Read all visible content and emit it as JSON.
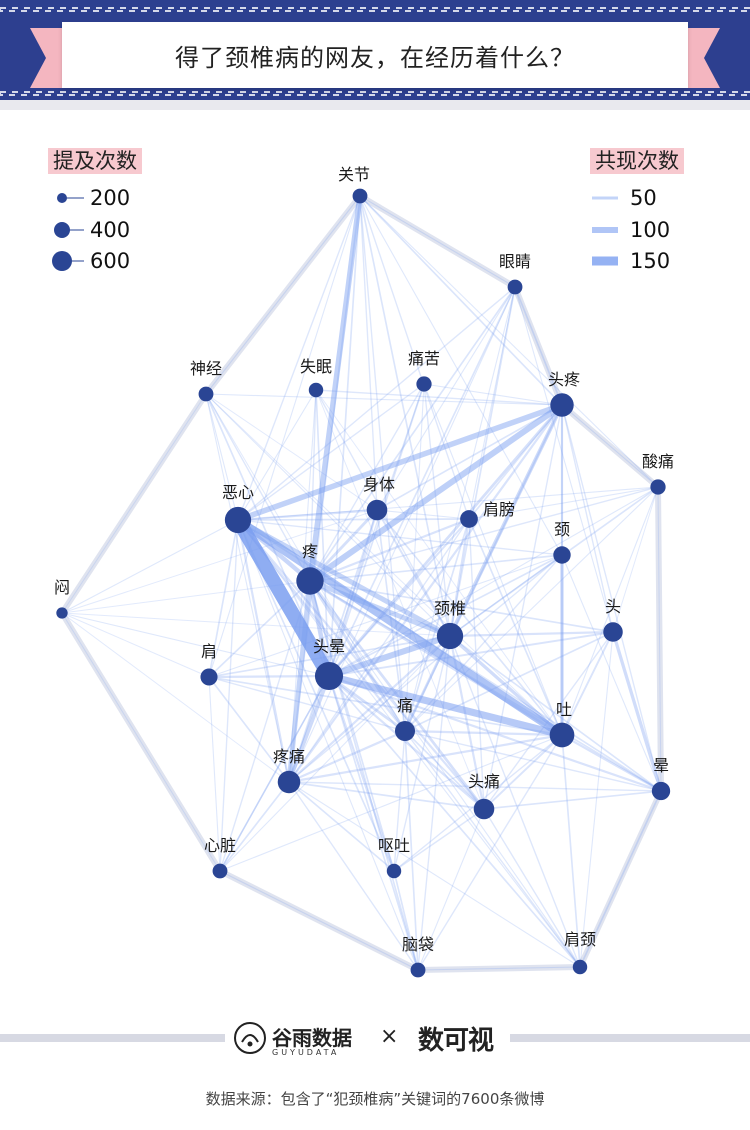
{
  "title": "得了颈椎病的网友，在经历着什么？",
  "legend_size": {
    "title": "提及次数",
    "items": [
      {
        "label": "200",
        "value": 200
      },
      {
        "label": "400",
        "value": 400
      },
      {
        "label": "600",
        "value": 600
      }
    ]
  },
  "legend_cooccur": {
    "title": "共现次数",
    "items": [
      {
        "label": "50",
        "value": 50
      },
      {
        "label": "100",
        "value": 100
      },
      {
        "label": "150",
        "value": 150
      }
    ]
  },
  "footer": {
    "brand1": "谷雨数据",
    "brand1_sub": "GUYUDATA",
    "times": "×",
    "brand2": "数可视",
    "source": "数据来源：包含了“犯颈椎病”关键词的7600条微博"
  },
  "colors": {
    "banner": "#2d3f8f",
    "accent_pink": "#f4b6c0",
    "node": "#2a4594",
    "edge": "#7b9ff0"
  },
  "chart_data": {
    "type": "network",
    "size_legend_title": "提及次数",
    "edge_legend_title": "共现次数",
    "nodes": [
      {
        "id": "关节",
        "mentions": 120
      },
      {
        "id": "眼睛",
        "mentions": 120
      },
      {
        "id": "神经",
        "mentions": 120
      },
      {
        "id": "失眠",
        "mentions": 110
      },
      {
        "id": "痛苦",
        "mentions": 130
      },
      {
        "id": "头疼",
        "mentions": 420
      },
      {
        "id": "酸痛",
        "mentions": 130
      },
      {
        "id": "恶心",
        "mentions": 560
      },
      {
        "id": "身体",
        "mentions": 300
      },
      {
        "id": "肩膀",
        "mentions": 200
      },
      {
        "id": "颈",
        "mentions": 190
      },
      {
        "id": "疼",
        "mentions": 620
      },
      {
        "id": "闷",
        "mentions": 50
      },
      {
        "id": "颈椎",
        "mentions": 560
      },
      {
        "id": "头",
        "mentions": 260
      },
      {
        "id": "肩",
        "mentions": 180
      },
      {
        "id": "头晕",
        "mentions": 660
      },
      {
        "id": "痛",
        "mentions": 280
      },
      {
        "id": "吐",
        "mentions": 480
      },
      {
        "id": "疼痛",
        "mentions": 380
      },
      {
        "id": "头痛",
        "mentions": 300
      },
      {
        "id": "晕",
        "mentions": 220
      },
      {
        "id": "心脏",
        "mentions": 120
      },
      {
        "id": "呕吐",
        "mentions": 110
      },
      {
        "id": "脑袋",
        "mentions": 120
      },
      {
        "id": "肩颈",
        "mentions": 110
      }
    ],
    "edges": [
      {
        "source": "恶心",
        "target": "头晕",
        "cooccur": 260
      },
      {
        "source": "恶心",
        "target": "吐",
        "cooccur": 150
      },
      {
        "source": "头晕",
        "target": "吐",
        "cooccur": 130
      },
      {
        "source": "疼",
        "target": "头疼",
        "cooccur": 110
      },
      {
        "source": "恶心",
        "target": "头疼",
        "cooccur": 100
      },
      {
        "source": "头晕",
        "target": "颈椎",
        "cooccur": 110
      },
      {
        "source": "关节",
        "target": "疼",
        "cooccur": 100
      },
      {
        "source": "疼",
        "target": "颈椎",
        "cooccur": 90
      },
      {
        "source": "恶心",
        "target": "颈椎",
        "cooccur": 90
      },
      {
        "source": "恶心",
        "target": "疼",
        "cooccur": 80
      },
      {
        "source": "疼",
        "target": "疼痛",
        "cooccur": 90
      },
      {
        "source": "头晕",
        "target": "疼痛",
        "cooccur": 70
      },
      {
        "source": "疼",
        "target": "头晕",
        "cooccur": 80
      },
      {
        "source": "颈椎",
        "target": "头疼",
        "cooccur": 70
      },
      {
        "source": "颈",
        "target": "吐",
        "cooccur": 60
      },
      {
        "source": "头",
        "target": "晕",
        "cooccur": 60
      },
      {
        "source": "身体",
        "target": "疼",
        "cooccur": 50
      },
      {
        "source": "颈椎",
        "target": "吐",
        "cooccur": 60
      },
      {
        "source": "头疼",
        "target": "头晕",
        "cooccur": 50
      },
      {
        "source": "疼",
        "target": "头痛",
        "cooccur": 50
      },
      {
        "source": "头晕",
        "target": "痛",
        "cooccur": 50
      },
      {
        "source": "肩膀",
        "target": "颈椎",
        "cooccur": 40
      },
      {
        "source": "头疼",
        "target": "吐",
        "cooccur": 40
      },
      {
        "source": "头晕",
        "target": "呕吐",
        "cooccur": 40
      },
      {
        "source": "恶心",
        "target": "身体",
        "cooccur": 40
      },
      {
        "source": "头疼",
        "target": "疼痛",
        "cooccur": 40
      },
      {
        "source": "头晕",
        "target": "头痛",
        "cooccur": 40
      },
      {
        "source": "痛苦",
        "target": "头晕",
        "cooccur": 30
      },
      {
        "source": "眼睛",
        "target": "疼",
        "cooccur": 30
      },
      {
        "source": "神经",
        "target": "头晕",
        "cooccur": 30
      },
      {
        "source": "酸痛",
        "target": "颈椎",
        "cooccur": 30
      },
      {
        "source": "失眠",
        "target": "头晕",
        "cooccur": 30
      },
      {
        "source": "恶心",
        "target": "疼痛",
        "cooccur": 40
      },
      {
        "source": "疼",
        "target": "肩",
        "cooccur": 30
      },
      {
        "source": "心脏",
        "target": "头晕",
        "cooccur": 25
      },
      {
        "source": "脑袋",
        "target": "头晕",
        "cooccur": 30
      },
      {
        "source": "肩颈",
        "target": "痛",
        "cooccur": 25
      },
      {
        "source": "闷",
        "target": "头晕",
        "cooccur": 20
      },
      {
        "source": "闷",
        "target": "恶心",
        "cooccur": 20
      },
      {
        "source": "闷",
        "target": "疼",
        "cooccur": 15
      },
      {
        "source": "闷",
        "target": "身体",
        "cooccur": 15
      },
      {
        "source": "闷",
        "target": "肩",
        "cooccur": 15
      },
      {
        "source": "闷",
        "target": "心脏",
        "cooccur": 10
      },
      {
        "source": "闷",
        "target": "神经",
        "cooccur": 10
      },
      {
        "source": "闷",
        "target": "颈椎",
        "cooccur": 15
      },
      {
        "source": "闷",
        "target": "疼痛",
        "cooccur": 15
      },
      {
        "source": "关节",
        "target": "神经",
        "cooccur": 20
      },
      {
        "source": "关节",
        "target": "眼睛",
        "cooccur": 20
      },
      {
        "source": "关节",
        "target": "头疼",
        "cooccur": 30
      },
      {
        "source": "关节",
        "target": "恶心",
        "cooccur": 25
      },
      {
        "source": "关节",
        "target": "头晕",
        "cooccur": 30
      },
      {
        "source": "关节",
        "target": "颈椎",
        "cooccur": 30
      },
      {
        "source": "关节",
        "target": "身体",
        "cooccur": 25
      },
      {
        "source": "关节",
        "target": "肩膀",
        "cooccur": 25
      },
      {
        "source": "关节",
        "target": "疼痛",
        "cooccur": 30
      },
      {
        "source": "关节",
        "target": "痛",
        "cooccur": 25
      },
      {
        "source": "关节",
        "target": "酸痛",
        "cooccur": 20
      },
      {
        "source": "关节",
        "target": "颈",
        "cooccur": 20
      },
      {
        "source": "关节",
        "target": "肩",
        "cooccur": 20
      },
      {
        "source": "眼睛",
        "target": "头疼",
        "cooccur": 30
      },
      {
        "source": "眼睛",
        "target": "恶心",
        "cooccur": 25
      },
      {
        "source": "眼睛",
        "target": "头晕",
        "cooccur": 30
      },
      {
        "source": "眼睛",
        "target": "颈椎",
        "cooccur": 30
      },
      {
        "source": "眼睛",
        "target": "身体",
        "cooccur": 20
      },
      {
        "source": "眼睛",
        "target": "痛",
        "cooccur": 20
      },
      {
        "source": "眼睛",
        "target": "疼痛",
        "cooccur": 20
      },
      {
        "source": "眼睛",
        "target": "头",
        "cooccur": 20
      },
      {
        "source": "眼睛",
        "target": "肩膀",
        "cooccur": 20
      },
      {
        "source": "神经",
        "target": "恶心",
        "cooccur": 20
      },
      {
        "source": "神经",
        "target": "疼",
        "cooccur": 25
      },
      {
        "source": "神经",
        "target": "颈椎",
        "cooccur": 20
      },
      {
        "source": "神经",
        "target": "头疼",
        "cooccur": 20
      },
      {
        "source": "神经",
        "target": "疼痛",
        "cooccur": 20
      },
      {
        "source": "神经",
        "target": "身体",
        "cooccur": 15
      },
      {
        "source": "神经",
        "target": "痛",
        "cooccur": 15
      },
      {
        "source": "神经",
        "target": "吐",
        "cooccur": 15
      },
      {
        "source": "失眠",
        "target": "恶心",
        "cooccur": 20
      },
      {
        "source": "失眠",
        "target": "疼",
        "cooccur": 25
      },
      {
        "source": "失眠",
        "target": "头疼",
        "cooccur": 25
      },
      {
        "source": "失眠",
        "target": "颈椎",
        "cooccur": 25
      },
      {
        "source": "失眠",
        "target": "疼痛",
        "cooccur": 20
      },
      {
        "source": "失眠",
        "target": "吐",
        "cooccur": 15
      },
      {
        "source": "失眠",
        "target": "头痛",
        "cooccur": 15
      },
      {
        "source": "痛苦",
        "target": "恶心",
        "cooccur": 25
      },
      {
        "source": "痛苦",
        "target": "疼",
        "cooccur": 25
      },
      {
        "source": "痛苦",
        "target": "颈椎",
        "cooccur": 25
      },
      {
        "source": "痛苦",
        "target": "吐",
        "cooccur": 20
      },
      {
        "source": "痛苦",
        "target": "头疼",
        "cooccur": 20
      },
      {
        "source": "痛苦",
        "target": "疼痛",
        "cooccur": 25
      },
      {
        "source": "痛苦",
        "target": "痛",
        "cooccur": 20
      },
      {
        "source": "头疼",
        "target": "头",
        "cooccur": 25
      },
      {
        "source": "头疼",
        "target": "颈",
        "cooccur": 30
      },
      {
        "source": "头疼",
        "target": "肩膀",
        "cooccur": 30
      },
      {
        "source": "头疼",
        "target": "身体",
        "cooccur": 30
      },
      {
        "source": "头疼",
        "target": "痛",
        "cooccur": 30
      },
      {
        "source": "头疼",
        "target": "头痛",
        "cooccur": 25
      },
      {
        "source": "头疼",
        "target": "晕",
        "cooccur": 25
      },
      {
        "source": "头疼",
        "target": "酸痛",
        "cooccur": 20
      },
      {
        "source": "酸痛",
        "target": "疼",
        "cooccur": 25
      },
      {
        "source": "酸痛",
        "target": "头晕",
        "cooccur": 20
      },
      {
        "source": "酸痛",
        "target": "痛",
        "cooccur": 20
      },
      {
        "source": "酸痛",
        "target": "肩膀",
        "cooccur": 20
      },
      {
        "source": "酸痛",
        "target": "吐",
        "cooccur": 20
      },
      {
        "source": "酸痛",
        "target": "头",
        "cooccur": 15
      },
      {
        "source": "酸痛",
        "target": "晕",
        "cooccur": 15
      },
      {
        "source": "酸痛",
        "target": "恶心",
        "cooccur": 20
      },
      {
        "source": "恶心",
        "target": "肩膀",
        "cooccur": 30
      },
      {
        "source": "恶心",
        "target": "痛",
        "cooccur": 40
      },
      {
        "source": "恶心",
        "target": "头痛",
        "cooccur": 40
      },
      {
        "source": "恶心",
        "target": "肩",
        "cooccur": 30
      },
      {
        "source": "恶心",
        "target": "呕吐",
        "cooccur": 30
      },
      {
        "source": "恶心",
        "target": "晕",
        "cooccur": 30
      },
      {
        "source": "恶心",
        "target": "颈",
        "cooccur": 25
      },
      {
        "source": "恶心",
        "target": "心脏",
        "cooccur": 25
      },
      {
        "source": "身体",
        "target": "颈椎",
        "cooccur": 35
      },
      {
        "source": "身体",
        "target": "头晕",
        "cooccur": 40
      },
      {
        "source": "身体",
        "target": "吐",
        "cooccur": 30
      },
      {
        "source": "身体",
        "target": "疼痛",
        "cooccur": 30
      },
      {
        "source": "身体",
        "target": "痛",
        "cooccur": 30
      },
      {
        "source": "身体",
        "target": "肩膀",
        "cooccur": 20
      },
      {
        "source": "肩膀",
        "target": "疼",
        "cooccur": 40
      },
      {
        "source": "肩膀",
        "target": "头晕",
        "cooccur": 35
      },
      {
        "source": "肩膀",
        "target": "痛",
        "cooccur": 30
      },
      {
        "source": "肩膀",
        "target": "吐",
        "cooccur": 30
      },
      {
        "source": "肩膀",
        "target": "头痛",
        "cooccur": 25
      },
      {
        "source": "肩膀",
        "target": "疼痛",
        "cooccur": 25
      },
      {
        "source": "颈",
        "target": "疼",
        "cooccur": 30
      },
      {
        "source": "颈",
        "target": "头晕",
        "cooccur": 30
      },
      {
        "source": "颈",
        "target": "颈椎",
        "cooccur": 25
      },
      {
        "source": "颈",
        "target": "痛",
        "cooccur": 25
      },
      {
        "source": "颈",
        "target": "疼痛",
        "cooccur": 25
      },
      {
        "source": "颈",
        "target": "晕",
        "cooccur": 20
      },
      {
        "source": "颈",
        "target": "肩",
        "cooccur": 20
      },
      {
        "source": "疼",
        "target": "吐",
        "cooccur": 50
      },
      {
        "source": "疼",
        "target": "痛",
        "cooccur": 50
      },
      {
        "source": "疼",
        "target": "晕",
        "cooccur": 30
      },
      {
        "source": "疼",
        "target": "头",
        "cooccur": 30
      },
      {
        "source": "疼",
        "target": "心脏",
        "cooccur": 25
      },
      {
        "source": "疼",
        "target": "呕吐",
        "cooccur": 30
      },
      {
        "source": "疼",
        "target": "脑袋",
        "cooccur": 30
      },
      {
        "source": "颈椎",
        "target": "痛",
        "cooccur": 50
      },
      {
        "source": "颈椎",
        "target": "头",
        "cooccur": 40
      },
      {
        "source": "颈椎",
        "target": "疼痛",
        "cooccur": 40
      },
      {
        "source": "颈椎",
        "target": "头痛",
        "cooccur": 40
      },
      {
        "source": "颈椎",
        "target": "晕",
        "cooccur": 30
      },
      {
        "source": "颈椎",
        "target": "肩",
        "cooccur": 30
      },
      {
        "source": "颈椎",
        "target": "肩颈",
        "cooccur": 25
      },
      {
        "source": "颈椎",
        "target": "脑袋",
        "cooccur": 25
      },
      {
        "source": "头",
        "target": "头晕",
        "cooccur": 35
      },
      {
        "source": "头",
        "target": "吐",
        "cooccur": 35
      },
      {
        "source": "头",
        "target": "痛",
        "cooccur": 30
      },
      {
        "source": "头",
        "target": "肩颈",
        "cooccur": 20
      },
      {
        "source": "头",
        "target": "头痛",
        "cooccur": 25
      },
      {
        "source": "肩",
        "target": "头晕",
        "cooccur": 40
      },
      {
        "source": "肩",
        "target": "疼痛",
        "cooccur": 30
      },
      {
        "source": "肩",
        "target": "吐",
        "cooccur": 30
      },
      {
        "source": "肩",
        "target": "痛",
        "cooccur": 25
      },
      {
        "source": "肩",
        "target": "心脏",
        "cooccur": 20
      },
      {
        "source": "头晕",
        "target": "晕",
        "cooccur": 40
      },
      {
        "source": "头晕",
        "target": "心脏",
        "cooccur": 30
      },
      {
        "source": "头晕",
        "target": "肩颈",
        "cooccur": 30
      },
      {
        "source": "痛",
        "target": "吐",
        "cooccur": 40
      },
      {
        "source": "痛",
        "target": "疼痛",
        "cooccur": 40
      },
      {
        "source": "痛",
        "target": "头痛",
        "cooccur": 30
      },
      {
        "source": "痛",
        "target": "脑袋",
        "cooccur": 30
      },
      {
        "source": "痛",
        "target": "呕吐",
        "cooccur": 25
      },
      {
        "source": "吐",
        "target": "晕",
        "cooccur": 40
      },
      {
        "source": "吐",
        "target": "疼痛",
        "cooccur": 40
      },
      {
        "source": "吐",
        "target": "头痛",
        "cooccur": 35
      },
      {
        "source": "吐",
        "target": "肩颈",
        "cooccur": 30
      },
      {
        "source": "吐",
        "target": "脑袋",
        "cooccur": 25
      },
      {
        "source": "吐",
        "target": "呕吐",
        "cooccur": 25
      },
      {
        "source": "疼痛",
        "target": "心脏",
        "cooccur": 30
      },
      {
        "source": "疼痛",
        "target": "呕吐",
        "cooccur": 30
      },
      {
        "source": "疼痛",
        "target": "脑袋",
        "cooccur": 25
      },
      {
        "source": "疼痛",
        "target": "头痛",
        "cooccur": 30
      },
      {
        "source": "头痛",
        "target": "晕",
        "cooccur": 30
      },
      {
        "source": "头痛",
        "target": "呕吐",
        "cooccur": 25
      },
      {
        "source": "头痛",
        "target": "肩颈",
        "cooccur": 25
      },
      {
        "source": "头痛",
        "target": "脑袋",
        "cooccur": 20
      },
      {
        "source": "晕",
        "target": "肩颈",
        "cooccur": 30
      },
      {
        "source": "晕",
        "target": "痛",
        "cooccur": 25
      },
      {
        "source": "晕",
        "target": "疼痛",
        "cooccur": 25
      },
      {
        "source": "心脏",
        "target": "脑袋",
        "cooccur": 20
      },
      {
        "source": "心脏",
        "target": "吐",
        "cooccur": 20
      },
      {
        "source": "心脏",
        "target": "颈椎",
        "cooccur": 20
      },
      {
        "source": "呕吐",
        "target": "脑袋",
        "cooccur": 30
      },
      {
        "source": "呕吐",
        "target": "颈椎",
        "cooccur": 25
      },
      {
        "source": "脑袋",
        "target": "肩颈",
        "cooccur": 20
      },
      {
        "source": "脑袋",
        "target": "恶心",
        "cooccur": 20
      },
      {
        "source": "肩颈",
        "target": "疼",
        "cooccur": 20
      },
      {
        "source": "肩颈",
        "target": "疼痛",
        "cooccur": 20
      },
      {
        "source": "肩颈",
        "target": "恶心",
        "cooccur": 20
      }
    ]
  }
}
